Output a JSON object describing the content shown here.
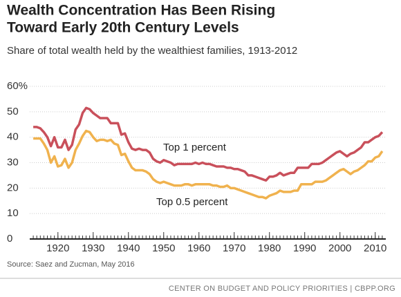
{
  "chart_data": {
    "type": "line",
    "title": [
      "Wealth Concentration Has Been Rising",
      "Toward Early 20th Century Levels"
    ],
    "subtitle": "Share of total wealth held by the wealthiest families, 1913-2012",
    "source": "Source: Saez and Zucman, May 2016",
    "footer": "CENTER ON BUDGET AND POLICY PRIORITIES | CBPP.ORG",
    "x": [
      1913,
      1914,
      1915,
      1916,
      1917,
      1918,
      1919,
      1920,
      1921,
      1922,
      1923,
      1924,
      1925,
      1926,
      1927,
      1928,
      1929,
      1930,
      1931,
      1932,
      1933,
      1934,
      1935,
      1936,
      1937,
      1938,
      1939,
      1940,
      1941,
      1942,
      1943,
      1944,
      1945,
      1946,
      1947,
      1948,
      1949,
      1950,
      1951,
      1952,
      1953,
      1954,
      1955,
      1956,
      1957,
      1958,
      1959,
      1960,
      1961,
      1962,
      1963,
      1964,
      1965,
      1966,
      1967,
      1968,
      1969,
      1970,
      1971,
      1972,
      1973,
      1974,
      1975,
      1976,
      1977,
      1978,
      1979,
      1980,
      1981,
      1982,
      1983,
      1984,
      1985,
      1986,
      1987,
      1988,
      1989,
      1990,
      1991,
      1992,
      1993,
      1994,
      1995,
      1996,
      1997,
      1998,
      1999,
      2000,
      2001,
      2002,
      2003,
      2004,
      2005,
      2006,
      2007,
      2008,
      2009,
      2010,
      2011,
      2012
    ],
    "series": [
      {
        "name": "Top 1 percent",
        "color": "#c9505b",
        "values": [
          44,
          44,
          43.5,
          42,
          40,
          36.5,
          40,
          36,
          36,
          39,
          35,
          37,
          43,
          45,
          49.5,
          51.5,
          51,
          49.5,
          48.5,
          47.5,
          47.5,
          47.5,
          45.5,
          45.5,
          45.5,
          41,
          41.5,
          38,
          35.5,
          35,
          35.5,
          35,
          35,
          34,
          31.5,
          30.5,
          30,
          31,
          30.5,
          30,
          29,
          29.5,
          29.5,
          29.5,
          29.5,
          29.5,
          30,
          29.5,
          30,
          29.5,
          29.5,
          29,
          28.5,
          28.5,
          28.5,
          28,
          28,
          27.5,
          27.5,
          27,
          26.5,
          25,
          25,
          24.5,
          24,
          23.5,
          23,
          24.5,
          24.5,
          25,
          26,
          25,
          25.5,
          26,
          26,
          28,
          28,
          28,
          28,
          29.5,
          29.5,
          29.5,
          30,
          31,
          32,
          33,
          34,
          34.5,
          33.5,
          32.5,
          33.5,
          34,
          35,
          36,
          38,
          38,
          39,
          40,
          40.5,
          42
        ]
      },
      {
        "name": "Top 0.5 percent",
        "color": "#f0b24e",
        "values": [
          39.5,
          39.5,
          39.5,
          37.5,
          35,
          30,
          32.5,
          28.5,
          29,
          31.5,
          28,
          30,
          35,
          37.5,
          40.5,
          42.5,
          42,
          40,
          38.5,
          39,
          39,
          38.5,
          39,
          37.5,
          37,
          33,
          33.5,
          30.5,
          28,
          27,
          27,
          27,
          26.5,
          25.5,
          23.5,
          22.5,
          22,
          22.5,
          22,
          21.5,
          21,
          21,
          21,
          21.5,
          21.5,
          21,
          21.5,
          21.5,
          21.5,
          21.5,
          21.5,
          21,
          21,
          20.5,
          20.5,
          21,
          20,
          20,
          19.5,
          19,
          18.5,
          18,
          17.5,
          17,
          16.5,
          16.5,
          16,
          17,
          17.5,
          18,
          19,
          18.5,
          18.5,
          18.5,
          19,
          19,
          21.5,
          21.5,
          21.5,
          21.5,
          22.5,
          22.5,
          22.5,
          23,
          24,
          25,
          26,
          27,
          27.5,
          26.5,
          25.5,
          26.5,
          27,
          28,
          29,
          30.5,
          30.5,
          32,
          32.5,
          34.5
        ]
      }
    ],
    "xlim": [
      1912,
      2013
    ],
    "xticks": [
      1920,
      1930,
      1940,
      1950,
      1960,
      1970,
      1980,
      1990,
      2000,
      2010
    ],
    "ylim": [
      0,
      60
    ],
    "yticks": [
      0,
      10,
      20,
      30,
      40,
      50,
      {
        "value": 60,
        "label": "60%"
      }
    ],
    "grid": true
  }
}
